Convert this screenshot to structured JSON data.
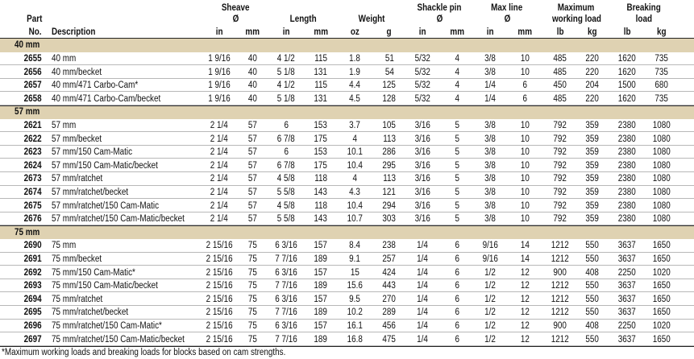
{
  "header": {
    "part": [
      "Part",
      "No."
    ],
    "description": "Description",
    "groups": [
      {
        "lines": [
          "Sheave",
          "Ø"
        ],
        "units": [
          "in",
          "mm"
        ]
      },
      {
        "lines": [
          "Length"
        ],
        "units": [
          "in",
          "mm"
        ]
      },
      {
        "lines": [
          "Weight"
        ],
        "units": [
          "oz",
          "g"
        ]
      },
      {
        "lines": [
          "Shackle pin",
          "Ø"
        ],
        "units": [
          "in",
          "mm"
        ]
      },
      {
        "lines": [
          "Max line",
          "Ø"
        ],
        "units": [
          "in",
          "mm"
        ]
      },
      {
        "lines": [
          "Maximum",
          "working load"
        ],
        "units": [
          "lb",
          "kg"
        ]
      },
      {
        "lines": [
          "Breaking",
          "load"
        ],
        "units": [
          "lb",
          "kg"
        ]
      }
    ]
  },
  "sections": [
    {
      "title": "40 mm",
      "rows": [
        [
          "2655",
          "40 mm",
          "1 9/16",
          "40",
          "4 1/2",
          "115",
          "1.8",
          "51",
          "5/32",
          "4",
          "3/8",
          "10",
          "485",
          "220",
          "1620",
          "735"
        ],
        [
          "2656",
          "40 mm/becket",
          "1 9/16",
          "40",
          "5 1/8",
          "131",
          "1.9",
          "54",
          "5/32",
          "4",
          "3/8",
          "10",
          "485",
          "220",
          "1620",
          "735"
        ],
        [
          "2657",
          "40 mm/471 Carbo-Cam*",
          "1 9/16",
          "40",
          "4 1/2",
          "115",
          "4.4",
          "125",
          "5/32",
          "4",
          "1/4",
          "6",
          "450",
          "204",
          "1500",
          "680"
        ],
        [
          "2658",
          "40 mm/471 Carbo-Cam/becket",
          "1 9/16",
          "40",
          "5 1/8",
          "131",
          "4.5",
          "128",
          "5/32",
          "4",
          "1/4",
          "6",
          "485",
          "220",
          "1620",
          "735"
        ]
      ]
    },
    {
      "title": "57 mm",
      "rows": [
        [
          "2621",
          "57 mm",
          "2 1/4",
          "57",
          "6",
          "153",
          "3.7",
          "105",
          "3/16",
          "5",
          "3/8",
          "10",
          "792",
          "359",
          "2380",
          "1080"
        ],
        [
          "2622",
          "57 mm/becket",
          "2 1/4",
          "57",
          "6 7/8",
          "175",
          "4",
          "113",
          "3/16",
          "5",
          "3/8",
          "10",
          "792",
          "359",
          "2380",
          "1080"
        ],
        [
          "2623",
          "57 mm/150 Cam-Matic",
          "2 1/4",
          "57",
          "6",
          "153",
          "10.1",
          "286",
          "3/16",
          "5",
          "3/8",
          "10",
          "792",
          "359",
          "2380",
          "1080"
        ],
        [
          "2624",
          "57 mm/150 Cam-Matic/becket",
          "2 1/4",
          "57",
          "6 7/8",
          "175",
          "10.4",
          "295",
          "3/16",
          "5",
          "3/8",
          "10",
          "792",
          "359",
          "2380",
          "1080"
        ],
        [
          "2673",
          "57 mm/ratchet",
          "2 1/4",
          "57",
          "4 5/8",
          "118",
          "4",
          "113",
          "3/16",
          "5",
          "3/8",
          "10",
          "792",
          "359",
          "2380",
          "1080"
        ],
        [
          "2674",
          "57 mm/ratchet/becket",
          "2 1/4",
          "57",
          "5 5/8",
          "143",
          "4.3",
          "121",
          "3/16",
          "5",
          "3/8",
          "10",
          "792",
          "359",
          "2380",
          "1080"
        ],
        [
          "2675",
          "57 mm/ratchet/150 Cam-Matic",
          "2 1/4",
          "57",
          "4 5/8",
          "118",
          "10.4",
          "294",
          "3/16",
          "5",
          "3/8",
          "10",
          "792",
          "359",
          "2380",
          "1080"
        ],
        [
          "2676",
          "57 mm/ratchet/150 Cam-Matic/becket",
          "2 1/4",
          "57",
          "5 5/8",
          "143",
          "10.7",
          "303",
          "3/16",
          "5",
          "3/8",
          "10",
          "792",
          "359",
          "2380",
          "1080"
        ]
      ]
    },
    {
      "title": "75 mm",
      "rows": [
        [
          "2690",
          "75 mm",
          "2 15/16",
          "75",
          "6 3/16",
          "157",
          "8.4",
          "238",
          "1/4",
          "6",
          "9/16",
          "14",
          "1212",
          "550",
          "3637",
          "1650"
        ],
        [
          "2691",
          "75 mm/becket",
          "2 15/16",
          "75",
          "7 7/16",
          "189",
          "9.1",
          "257",
          "1/4",
          "6",
          "9/16",
          "14",
          "1212",
          "550",
          "3637",
          "1650"
        ],
        [
          "2692",
          "75 mm/150 Cam-Matic*",
          "2 15/16",
          "75",
          "6 3/16",
          "157",
          "15",
          "424",
          "1/4",
          "6",
          "1/2",
          "12",
          "900",
          "408",
          "2250",
          "1020"
        ],
        [
          "2693",
          "75 mm/150 Cam-Matic/becket",
          "2 15/16",
          "75",
          "7 7/16",
          "189",
          "15.6",
          "443",
          "1/4",
          "6",
          "1/2",
          "12",
          "1212",
          "550",
          "3637",
          "1650"
        ],
        [
          "2694",
          "75 mm/ratchet",
          "2 15/16",
          "75",
          "6 3/16",
          "157",
          "9.5",
          "270",
          "1/4",
          "6",
          "1/2",
          "12",
          "1212",
          "550",
          "3637",
          "1650"
        ],
        [
          "2695",
          "75 mm/ratchet/becket",
          "2 15/16",
          "75",
          "7 7/16",
          "189",
          "10.2",
          "289",
          "1/4",
          "6",
          "1/2",
          "12",
          "1212",
          "550",
          "3637",
          "1650"
        ],
        [
          "2696",
          "75 mm/ratchet/150 Cam-Matic*",
          "2 15/16",
          "75",
          "6 3/16",
          "157",
          "16.1",
          "456",
          "1/4",
          "6",
          "1/2",
          "12",
          "900",
          "408",
          "2250",
          "1020"
        ],
        [
          "2697",
          "75 mm/ratchet/150 Cam-Matic/becket",
          "2 15/16",
          "75",
          "7 7/16",
          "189",
          "16.8",
          "475",
          "1/4",
          "6",
          "1/2",
          "12",
          "1212",
          "550",
          "3637",
          "1650"
        ]
      ]
    }
  ],
  "footnote": "*Maximum working loads and breaking loads for blocks based on cam strengths."
}
